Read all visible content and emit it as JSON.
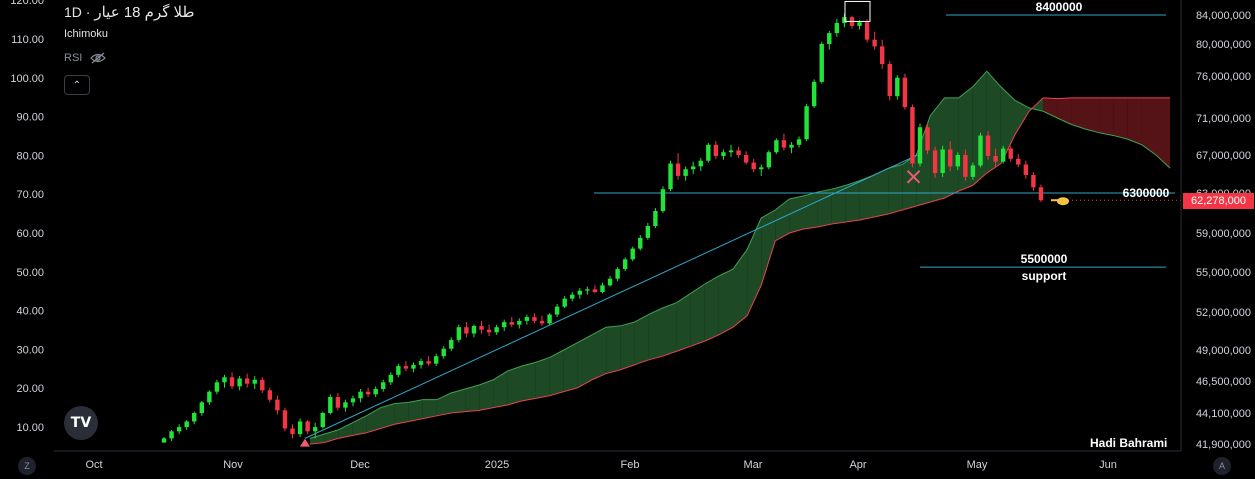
{
  "legend": {
    "symbol": "طلا گرم 18 عیار",
    "timeframe": "1D",
    "separator": "·"
  },
  "indicators": [
    {
      "label": "Ichimoku"
    },
    {
      "label": "RSI"
    }
  ],
  "collapse_label": "⌃",
  "logo_text": "TV",
  "author": "Hadi Bahrami",
  "corner_buttons": {
    "left": "Z",
    "right": "A"
  },
  "last_price_tag": "62,278,000",
  "colors": {
    "up": "#22e33a",
    "down": "#f23645",
    "cloud_bull": "#1f4d27",
    "cloud_bear": "#5a1419",
    "trendline": "#2fa6c9",
    "level": "#2fa6c9",
    "last_price": "#f23645"
  },
  "chart_data": {
    "type": "candlestick",
    "y_left_ticks": [
      "10.00",
      "20.00",
      "30.00",
      "40.00",
      "50.00",
      "60.00",
      "70.00",
      "80.00",
      "90.00",
      "100.00",
      "110.00",
      "120.00"
    ],
    "y_right_ticks": [
      "84,000,000",
      "80,000,000",
      "76,000,000",
      "71,000,000",
      "67,000,000",
      "63,000,000",
      "59,000,000",
      "55,000,000",
      "52,000,000",
      "49,000,000",
      "46,500,000",
      "44,100,000",
      "41,900,000"
    ],
    "x_ticks": [
      "Oct",
      "Nov",
      "Dec",
      "2025",
      "Feb",
      "Mar",
      "Apr",
      "May",
      "Jun"
    ],
    "levels": [
      {
        "label": "8400000",
        "value": 84000000
      },
      {
        "label": "6300000",
        "value": 63000000
      },
      {
        "label": "5500000",
        "sublabel": "support",
        "value": 55500000
      }
    ],
    "last_price": 62278000,
    "trendline": {
      "from": [
        "Nov 18",
        42300000
      ],
      "to": [
        "Apr 16",
        67000000
      ]
    },
    "markers": [
      {
        "type": "triangle-up",
        "date": "Nov 18",
        "value": 41800000
      },
      {
        "type": "triangle-up",
        "date": "Jan 22",
        "value": 51200000
      },
      {
        "type": "cross",
        "date": "Apr 15",
        "value": 64700000
      },
      {
        "type": "box",
        "date": "Apr 1",
        "value": 83800000
      }
    ],
    "candles": [
      [
        42000000,
        42400000,
        41700000,
        42300000
      ],
      [
        42300000,
        42900000,
        42100000,
        42800000
      ],
      [
        42800000,
        43300000,
        42600000,
        43100000
      ],
      [
        43100000,
        43600000,
        42900000,
        43500000
      ],
      [
        43500000,
        44200000,
        43300000,
        44100000
      ],
      [
        44100000,
        45000000,
        43900000,
        44900000
      ],
      [
        44900000,
        45800000,
        44700000,
        45700000
      ],
      [
        45700000,
        46600000,
        45500000,
        46400000
      ],
      [
        46400000,
        47000000,
        46000000,
        46800000
      ],
      [
        46800000,
        47200000,
        45900000,
        46100000
      ],
      [
        46100000,
        46900000,
        45800000,
        46700000
      ],
      [
        46700000,
        47100000,
        46000000,
        46300000
      ],
      [
        46300000,
        46900000,
        45900000,
        46600000
      ],
      [
        46600000,
        46800000,
        45600000,
        45800000
      ],
      [
        45800000,
        46000000,
        44900000,
        45100000
      ],
      [
        45100000,
        45400000,
        44000000,
        44300000
      ],
      [
        44300000,
        44500000,
        42800000,
        43000000
      ],
      [
        43000000,
        43300000,
        42300000,
        42600000
      ],
      [
        42600000,
        43700000,
        42400000,
        43500000
      ],
      [
        43500000,
        43600000,
        42600000,
        42800000
      ],
      [
        42800000,
        43400000,
        42300000,
        43100000
      ],
      [
        43100000,
        44200000,
        43000000,
        44100000
      ],
      [
        44100000,
        45500000,
        44000000,
        45300000
      ],
      [
        45300000,
        45600000,
        44300000,
        44500000
      ],
      [
        44500000,
        45100000,
        44200000,
        44900000
      ],
      [
        44900000,
        45400000,
        44600000,
        45200000
      ],
      [
        45200000,
        45900000,
        44900000,
        45700000
      ],
      [
        45700000,
        46000000,
        45300000,
        45500000
      ],
      [
        45500000,
        46100000,
        45300000,
        45900000
      ],
      [
        45900000,
        46600000,
        45700000,
        46400000
      ],
      [
        46400000,
        47200000,
        46200000,
        47000000
      ],
      [
        47000000,
        47900000,
        46800000,
        47700000
      ],
      [
        47700000,
        48100000,
        47300000,
        47500000
      ],
      [
        47500000,
        48000000,
        47200000,
        47800000
      ],
      [
        47800000,
        48300000,
        47500000,
        48100000
      ],
      [
        48100000,
        48500000,
        47700000,
        47900000
      ],
      [
        47900000,
        48700000,
        47700000,
        48500000
      ],
      [
        48500000,
        49300000,
        48300000,
        49100000
      ],
      [
        49100000,
        50000000,
        48900000,
        49800000
      ],
      [
        49800000,
        51000000,
        49600000,
        50800000
      ],
      [
        50800000,
        51200000,
        50000000,
        50300000
      ],
      [
        50300000,
        51000000,
        50000000,
        50900000
      ],
      [
        50900000,
        51300000,
        50300000,
        50600000
      ],
      [
        50600000,
        51000000,
        50100000,
        50400000
      ],
      [
        50400000,
        51000000,
        50200000,
        50800000
      ],
      [
        50800000,
        51400000,
        50500000,
        51200000
      ],
      [
        51200000,
        51600000,
        50800000,
        51000000
      ],
      [
        51000000,
        51500000,
        50700000,
        51300000
      ],
      [
        51300000,
        51800000,
        51000000,
        51600000
      ],
      [
        51600000,
        51900000,
        51100000,
        51300000
      ],
      [
        51300000,
        51700000,
        50900000,
        51100000
      ],
      [
        51100000,
        51900000,
        51000000,
        51800000
      ],
      [
        51800000,
        52600000,
        51600000,
        52400000
      ],
      [
        52400000,
        53200000,
        52300000,
        53000000
      ],
      [
        53000000,
        53500000,
        52800000,
        53300000
      ],
      [
        53300000,
        53800000,
        53000000,
        53600000
      ],
      [
        53600000,
        53900000,
        53300000,
        53700000
      ],
      [
        53700000,
        54000000,
        53400000,
        53500000
      ],
      [
        53500000,
        54200000,
        53400000,
        54000000
      ],
      [
        54000000,
        54700000,
        53900000,
        54500000
      ],
      [
        54500000,
        55500000,
        54300000,
        55300000
      ],
      [
        55300000,
        56500000,
        55100000,
        56300000
      ],
      [
        56300000,
        57600000,
        56100000,
        57400000
      ],
      [
        57400000,
        58800000,
        57200000,
        58500000
      ],
      [
        58500000,
        60000000,
        58300000,
        59700000
      ],
      [
        59700000,
        61500000,
        59500000,
        61200000
      ],
      [
        61200000,
        63700000,
        61000000,
        63400000
      ],
      [
        63400000,
        66400000,
        63200000,
        66100000
      ],
      [
        66100000,
        67200000,
        64400000,
        64800000
      ],
      [
        64800000,
        65800000,
        64300000,
        65500000
      ],
      [
        65500000,
        66300000,
        65000000,
        65800000
      ],
      [
        65800000,
        66700000,
        65300000,
        66400000
      ],
      [
        66400000,
        68300000,
        66200000,
        68100000
      ],
      [
        68100000,
        68500000,
        66600000,
        66900000
      ],
      [
        66900000,
        67600000,
        66500000,
        67300000
      ],
      [
        67300000,
        68100000,
        66800000,
        67500000
      ],
      [
        67500000,
        67900000,
        66700000,
        67000000
      ],
      [
        67000000,
        67400000,
        66000000,
        66200000
      ],
      [
        66200000,
        66600000,
        65200000,
        65500000
      ],
      [
        65500000,
        66000000,
        64800000,
        65700000
      ],
      [
        65700000,
        67500000,
        65500000,
        67300000
      ],
      [
        67300000,
        68800000,
        67100000,
        68600000
      ],
      [
        68600000,
        69300000,
        67500000,
        67800000
      ],
      [
        67800000,
        68400000,
        67200000,
        68100000
      ],
      [
        68100000,
        69000000,
        67800000,
        68700000
      ],
      [
        68700000,
        72700000,
        68500000,
        72400000
      ],
      [
        72400000,
        75600000,
        72200000,
        75300000
      ],
      [
        75300000,
        80300000,
        75100000,
        80000000
      ],
      [
        80000000,
        81800000,
        79300000,
        81500000
      ],
      [
        81500000,
        83500000,
        81000000,
        82900000
      ],
      [
        82900000,
        84200000,
        82300000,
        83700000
      ],
      [
        83700000,
        83900000,
        82100000,
        82500000
      ],
      [
        82500000,
        83300000,
        82000000,
        83000000
      ],
      [
        83000000,
        83400000,
        80200000,
        80600000
      ],
      [
        80600000,
        81700000,
        79300000,
        79700000
      ],
      [
        79700000,
        80600000,
        76900000,
        77500000
      ],
      [
        77500000,
        77900000,
        73100000,
        73600000
      ],
      [
        73600000,
        76100000,
        73200000,
        75800000
      ],
      [
        75800000,
        76300000,
        72000000,
        72300000
      ],
      [
        72300000,
        72600000,
        65700000,
        66100000
      ],
      [
        66100000,
        70400000,
        65800000,
        70000000
      ],
      [
        70000000,
        70400000,
        67100000,
        67500000
      ],
      [
        67500000,
        67900000,
        64600000,
        65100000
      ],
      [
        65100000,
        68000000,
        64700000,
        67600000
      ],
      [
        67600000,
        68500000,
        65300000,
        65800000
      ],
      [
        65800000,
        67300000,
        65400000,
        67000000
      ],
      [
        67000000,
        67600000,
        64300000,
        64700000
      ],
      [
        64700000,
        66200000,
        64400000,
        65900000
      ],
      [
        65900000,
        69400000,
        65700000,
        69100000
      ],
      [
        69100000,
        69600000,
        66500000,
        66900000
      ],
      [
        66900000,
        67700000,
        65800000,
        66300000
      ],
      [
        66300000,
        68000000,
        66100000,
        67700000
      ],
      [
        67700000,
        68000000,
        66300000,
        66600000
      ],
      [
        66600000,
        67100000,
        65700000,
        66000000
      ],
      [
        66000000,
        66400000,
        64500000,
        64900000
      ],
      [
        64900000,
        65200000,
        63200000,
        63600000
      ],
      [
        63600000,
        63900000,
        62100000,
        62278000
      ]
    ],
    "cloud": [
      {
        "a": 42300000,
        "b": 41900000,
        "bull": true
      },
      {
        "a": 42600000,
        "b": 42000000,
        "bull": true
      },
      {
        "a": 42900000,
        "b": 42300000,
        "bull": true
      },
      {
        "a": 43400000,
        "b": 42500000,
        "bull": true
      },
      {
        "a": 43900000,
        "b": 42700000,
        "bull": true
      },
      {
        "a": 44500000,
        "b": 43000000,
        "bull": true
      },
      {
        "a": 44800000,
        "b": 43300000,
        "bull": true
      },
      {
        "a": 44900000,
        "b": 43500000,
        "bull": true
      },
      {
        "a": 45100000,
        "b": 43700000,
        "bull": true
      },
      {
        "a": 45100000,
        "b": 43900000,
        "bull": true
      },
      {
        "a": 45600000,
        "b": 44100000,
        "bull": true
      },
      {
        "a": 45900000,
        "b": 44200000,
        "bull": true
      },
      {
        "a": 46200000,
        "b": 44300000,
        "bull": true
      },
      {
        "a": 46600000,
        "b": 44500000,
        "bull": true
      },
      {
        "a": 47300000,
        "b": 44700000,
        "bull": true
      },
      {
        "a": 47700000,
        "b": 45000000,
        "bull": true
      },
      {
        "a": 48000000,
        "b": 45200000,
        "bull": true
      },
      {
        "a": 48400000,
        "b": 45400000,
        "bull": true
      },
      {
        "a": 49000000,
        "b": 45700000,
        "bull": true
      },
      {
        "a": 49600000,
        "b": 46000000,
        "bull": true
      },
      {
        "a": 50200000,
        "b": 46600000,
        "bull": true
      },
      {
        "a": 50800000,
        "b": 47100000,
        "bull": true
      },
      {
        "a": 50900000,
        "b": 47400000,
        "bull": true
      },
      {
        "a": 51200000,
        "b": 47800000,
        "bull": true
      },
      {
        "a": 51800000,
        "b": 48200000,
        "bull": true
      },
      {
        "a": 52300000,
        "b": 48500000,
        "bull": true
      },
      {
        "a": 52700000,
        "b": 48900000,
        "bull": true
      },
      {
        "a": 53400000,
        "b": 49300000,
        "bull": true
      },
      {
        "a": 54100000,
        "b": 49700000,
        "bull": true
      },
      {
        "a": 54700000,
        "b": 50200000,
        "bull": true
      },
      {
        "a": 55300000,
        "b": 50800000,
        "bull": true
      },
      {
        "a": 57300000,
        "b": 51700000,
        "bull": true
      },
      {
        "a": 60500000,
        "b": 54000000,
        "bull": true
      },
      {
        "a": 61300000,
        "b": 58200000,
        "bull": true
      },
      {
        "a": 62400000,
        "b": 59000000,
        "bull": true
      },
      {
        "a": 62700000,
        "b": 59400000,
        "bull": true
      },
      {
        "a": 63100000,
        "b": 59600000,
        "bull": true
      },
      {
        "a": 63400000,
        "b": 59900000,
        "bull": true
      },
      {
        "a": 63800000,
        "b": 60100000,
        "bull": true
      },
      {
        "a": 64300000,
        "b": 60300000,
        "bull": true
      },
      {
        "a": 64900000,
        "b": 60600000,
        "bull": true
      },
      {
        "a": 65600000,
        "b": 60900000,
        "bull": true
      },
      {
        "a": 66000000,
        "b": 61300000,
        "bull": true
      },
      {
        "a": 67000000,
        "b": 61700000,
        "bull": true
      },
      {
        "a": 71300000,
        "b": 62100000,
        "bull": true
      },
      {
        "a": 73400000,
        "b": 62500000,
        "bull": true
      },
      {
        "a": 73400000,
        "b": 63200000,
        "bull": true
      },
      {
        "a": 74700000,
        "b": 63800000,
        "bull": true
      },
      {
        "a": 76600000,
        "b": 65100000,
        "bull": true
      },
      {
        "a": 74700000,
        "b": 66100000,
        "bull": true
      },
      {
        "a": 73100000,
        "b": 69200000,
        "bull": true
      },
      {
        "a": 72200000,
        "b": 71800000,
        "bull": true
      },
      {
        "a": 71800000,
        "b": 73400000,
        "bull": false
      },
      {
        "a": 71000000,
        "b": 73300000,
        "bull": false
      },
      {
        "a": 70300000,
        "b": 73400000,
        "bull": false
      },
      {
        "a": 69800000,
        "b": 73400000,
        "bull": false
      },
      {
        "a": 69400000,
        "b": 73400000,
        "bull": false
      },
      {
        "a": 69100000,
        "b": 73400000,
        "bull": false
      },
      {
        "a": 68700000,
        "b": 73400000,
        "bull": false
      },
      {
        "a": 68100000,
        "b": 73400000,
        "bull": false
      },
      {
        "a": 67000000,
        "b": 73400000,
        "bull": false
      },
      {
        "a": 65600000,
        "b": 73400000,
        "bull": false
      }
    ]
  }
}
